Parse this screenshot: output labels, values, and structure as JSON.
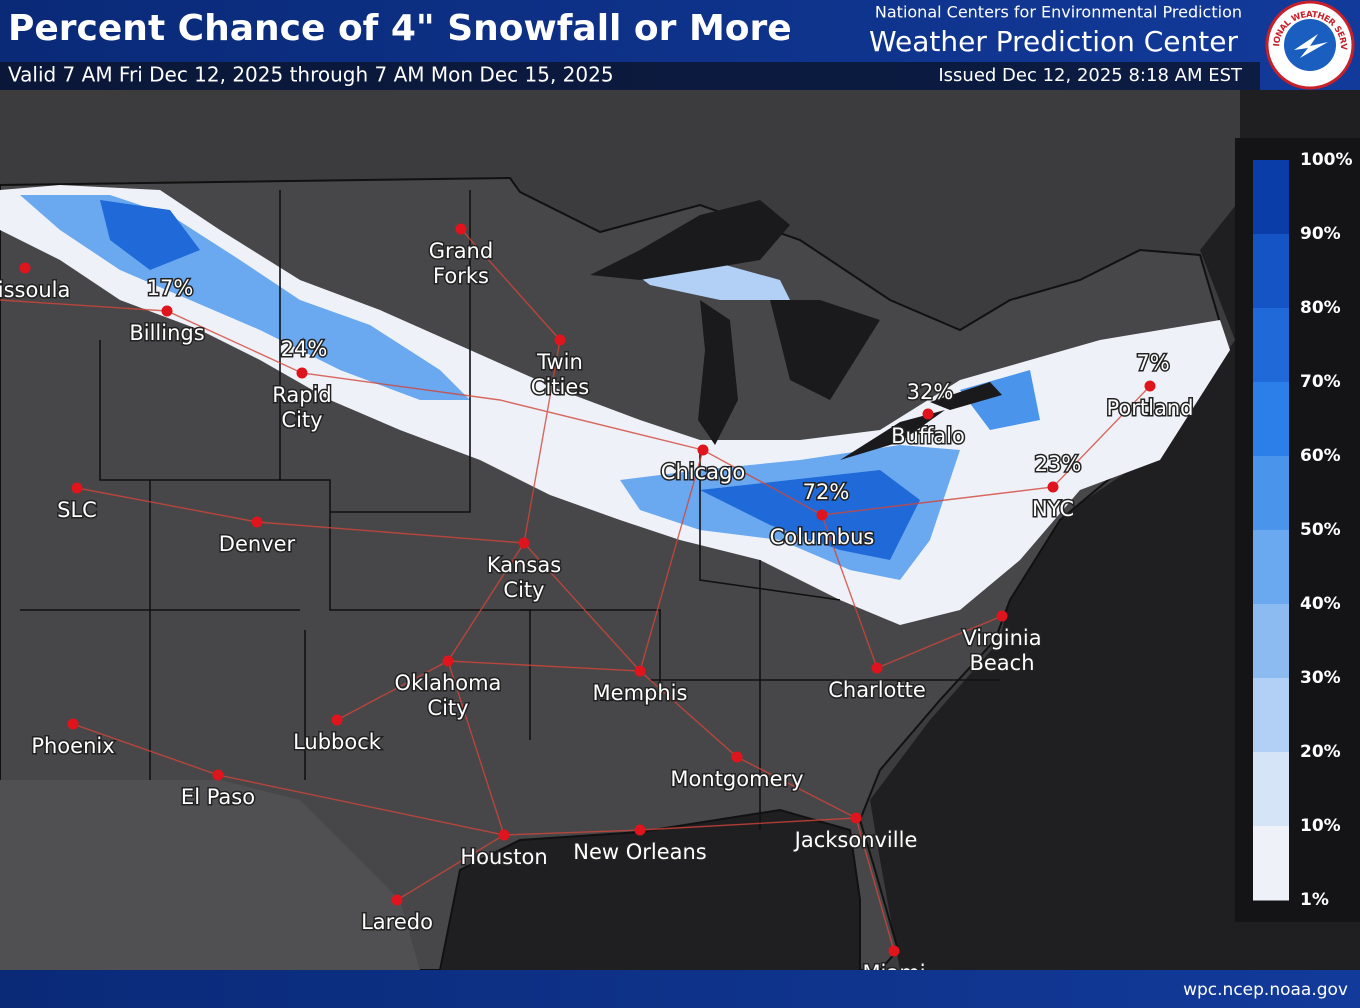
{
  "header": {
    "title": "Percent Chance of 4\" Snowfall or More",
    "valid": "Valid 7 AM Fri Dec 12, 2025 through 7 AM Mon Dec 15, 2025",
    "agency": "National Centers for Environmental Prediction",
    "center": "Weather Prediction Center",
    "issued": "Issued Dec 12, 2025 8:18 AM EST",
    "logo_text": "NATIONAL WEATHER SERVICE"
  },
  "map": {
    "cities": [
      {
        "lines": [
          "Missoula"
        ]
      },
      {
        "lines": [
          "Billings"
        ]
      },
      {
        "lines": [
          "Rapid",
          "City"
        ]
      },
      {
        "lines": [
          "Grand",
          "Forks"
        ]
      },
      {
        "lines": [
          "Twin",
          "Cities"
        ]
      },
      {
        "lines": [
          "SLC"
        ]
      },
      {
        "lines": [
          "Denver"
        ]
      },
      {
        "lines": [
          "Kansas",
          "City"
        ]
      },
      {
        "lines": [
          "Chicago"
        ]
      },
      {
        "lines": [
          "Columbus"
        ]
      },
      {
        "lines": [
          "Buffalo"
        ]
      },
      {
        "lines": [
          "Portland"
        ]
      },
      {
        "lines": [
          "NYC"
        ]
      },
      {
        "lines": [
          "Virginia",
          "Beach"
        ]
      },
      {
        "lines": [
          "Charlotte"
        ]
      },
      {
        "lines": [
          "Memphis"
        ]
      },
      {
        "lines": [
          "Oklahoma",
          "City"
        ]
      },
      {
        "lines": [
          "Lubbock"
        ]
      },
      {
        "lines": [
          "Phoenix"
        ]
      },
      {
        "lines": [
          "El Paso"
        ]
      },
      {
        "lines": [
          "Montgomery"
        ]
      },
      {
        "lines": [
          "Houston"
        ]
      },
      {
        "lines": [
          "New Orleans"
        ]
      },
      {
        "lines": [
          "Jacksonville"
        ]
      },
      {
        "lines": [
          "Laredo"
        ]
      },
      {
        "lines": [
          "Miami"
        ]
      }
    ],
    "annotations": [
      "17%",
      "24%",
      "72%",
      "32%",
      "23%",
      "7%"
    ]
  },
  "legend": {
    "labels": [
      "100%",
      "90%",
      "80%",
      "70%",
      "60%",
      "50%",
      "40%",
      "30%",
      "20%",
      "10%",
      "1%"
    ],
    "colors": [
      "#0b3da8",
      "#1554c4",
      "#1f6ad8",
      "#2c7fe8",
      "#4a94ec",
      "#6aa8f0",
      "#8cbbf2",
      "#b2d0f6",
      "#d6e4f8",
      "#eef2f8"
    ]
  },
  "footer": {
    "url": "wpc.ncep.noaa.gov"
  }
}
